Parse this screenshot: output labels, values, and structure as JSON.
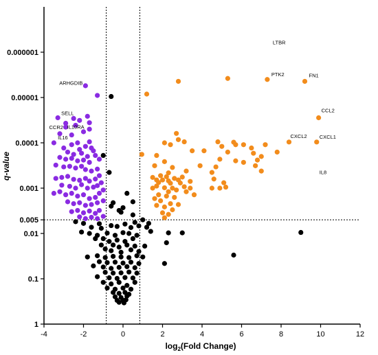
{
  "chart_data": {
    "type": "scatter",
    "title": "",
    "xlabel": "log",
    "xlabel_sub": "2",
    "xlabel_rest": "(Fold Change)",
    "ylabel": "q-value",
    "xlim": [
      -4,
      12
    ],
    "ylim_log": [
      1e-07,
      1
    ],
    "y_axis_scale": "log, reversed (smallest q-value at top)",
    "x_ticks": [
      "-4",
      "-2",
      "0",
      "2",
      "4",
      "6",
      "8",
      "10",
      "12"
    ],
    "x_tick_values": [
      -4,
      -2,
      0,
      2,
      4,
      6,
      8,
      10,
      12
    ],
    "y_ticks": [
      "0.000001",
      "0.00001",
      "0.0001",
      "0.001",
      "0.005",
      "0.01",
      "0.1",
      "1"
    ],
    "y_tick_values": [
      1e-06,
      1e-05,
      0.0001,
      0.001,
      0.005,
      0.01,
      0.1,
      1
    ],
    "threshold_lines": {
      "x": [
        -0.85,
        0.85
      ],
      "y": 0.005
    },
    "colors": {
      "down": "#8a2be2",
      "up": "#f28c1c",
      "ns": "#000000"
    },
    "labels": [
      {
        "name": "LTBR",
        "x": 7.3,
        "y": 7.2e-07
      },
      {
        "name": "PTK2",
        "x": 7.3,
        "y": 4.2e-06
      },
      {
        "name": "FN1",
        "x": 9.2,
        "y": 4.4e-06
      },
      {
        "name": "ARHGDIB",
        "x": -1.9,
        "y": 5.6e-06
      },
      {
        "name": "CCL2",
        "x": 9.9,
        "y": 2.7e-05
      },
      {
        "name": "SELL",
        "x": -3.3,
        "y": 2.7e-05
      },
      {
        "name": "CCR2",
        "x": -3.6,
        "y": 4.8e-05
      },
      {
        "name": "IL10RA",
        "x": -2.9,
        "y": 5.8e-05
      },
      {
        "name": "IL16",
        "x": -3.3,
        "y": 0.0001
      },
      {
        "name": "CXCL2",
        "x": 8.4,
        "y": 9.6e-05
      },
      {
        "name": "CXCL1",
        "x": 9.8,
        "y": 0.0001
      },
      {
        "name": "IL8",
        "x": 9.8,
        "y": 0.00065
      }
    ],
    "series": [
      {
        "name": "",
        "color": "#8a2be2",
        "points": [
          [
            -1.9,
            5.5e-06
          ],
          [
            -1.3,
            9e-06
          ],
          [
            -3.3,
            2.8e-05
          ],
          [
            -2.9,
            3.7e-05
          ],
          [
            -2.9,
            4.5e-05
          ],
          [
            -2.5,
            2.9e-05
          ],
          [
            -2.4,
            4.1e-05
          ],
          [
            -2.2,
            3.2e-05
          ],
          [
            -1.8,
            2.6e-05
          ],
          [
            -1.7,
            3.6e-05
          ],
          [
            -1.7,
            5e-05
          ],
          [
            -2.0,
            5.7e-05
          ],
          [
            -3.2,
            6.3e-05
          ],
          [
            -2.6,
            6.7e-05
          ],
          [
            -3.5,
            0.0001
          ],
          [
            -3.0,
            0.00013
          ],
          [
            -2.6,
            0.00011
          ],
          [
            -2.3,
            0.0001
          ],
          [
            -2.2,
            0.00014
          ],
          [
            -1.9,
            0.00012
          ],
          [
            -1.7,
            9.5e-05
          ],
          [
            -1.6,
            0.00013
          ],
          [
            -1.5,
            0.00015
          ],
          [
            -2.8,
            0.00016
          ],
          [
            -2.5,
            0.00018
          ],
          [
            -2.1,
            0.00017
          ],
          [
            -1.8,
            0.0002
          ],
          [
            -1.4,
            0.00019
          ],
          [
            -3.2,
            0.00021
          ],
          [
            -2.9,
            0.00023
          ],
          [
            -2.6,
            0.00022
          ],
          [
            -2.3,
            0.00025
          ],
          [
            -2.0,
            0.00024
          ],
          [
            -1.7,
            0.00027
          ],
          [
            -1.2,
            0.00023
          ],
          [
            -3.4,
            0.00031
          ],
          [
            -3.0,
            0.00034
          ],
          [
            -2.7,
            0.00033
          ],
          [
            -2.4,
            0.00036
          ],
          [
            -2.1,
            0.00033
          ],
          [
            -1.9,
            0.00039
          ],
          [
            -1.6,
            0.00042
          ],
          [
            -1.3,
            0.00038
          ],
          [
            -3.4,
            0.00061
          ],
          [
            -3.1,
            0.00058
          ],
          [
            -2.8,
            0.00055
          ],
          [
            -2.5,
            0.00064
          ],
          [
            -2.2,
            0.00067
          ],
          [
            -1.9,
            0.00061
          ],
          [
            -1.7,
            0.0007
          ],
          [
            -1.4,
            0.00063
          ],
          [
            -1.2,
            0.00053
          ],
          [
            -3.1,
            0.00086
          ],
          [
            -2.7,
            0.00091
          ],
          [
            -2.4,
            0.001
          ],
          [
            -2.1,
            0.00084
          ],
          [
            -1.8,
            0.001
          ],
          [
            -1.5,
            0.00095
          ],
          [
            -1.3,
            0.00088
          ],
          [
            -1.1,
            0.00076
          ],
          [
            -3.5,
            0.0013
          ],
          [
            -3.2,
            0.0012
          ],
          [
            -2.9,
            0.0014
          ],
          [
            -2.6,
            0.0013
          ],
          [
            -2.3,
            0.0015
          ],
          [
            -2.0,
            0.0014
          ],
          [
            -1.7,
            0.0017
          ],
          [
            -1.4,
            0.0016
          ],
          [
            -1.2,
            0.0013
          ],
          [
            -1.0,
            0.0011
          ],
          [
            -2.8,
            0.002
          ],
          [
            -2.5,
            0.0022
          ],
          [
            -2.2,
            0.0021
          ],
          [
            -1.9,
            0.0024
          ],
          [
            -1.6,
            0.0023
          ],
          [
            -1.3,
            0.0021
          ],
          [
            -1.0,
            0.0019
          ],
          [
            -2.6,
            0.0033
          ],
          [
            -2.3,
            0.0031
          ],
          [
            -2.0,
            0.0035
          ],
          [
            -1.7,
            0.0032
          ],
          [
            -1.4,
            0.0036
          ],
          [
            -1.2,
            0.0031
          ],
          [
            -2.2,
            0.0043
          ],
          [
            -1.9,
            0.0047
          ],
          [
            -1.6,
            0.0044
          ],
          [
            -1.3,
            0.0047
          ],
          [
            -1.0,
            0.0042
          ]
        ]
      },
      {
        "name": "",
        "color": "#f28c1c",
        "points": [
          [
            7.3,
            4e-06
          ],
          [
            5.3,
            3.8e-06
          ],
          [
            2.8,
            4.4e-06
          ],
          [
            9.2,
            4.4e-06
          ],
          [
            1.2,
            8.4e-06
          ],
          [
            9.9,
            2.8e-05
          ],
          [
            8.4,
            9.6e-05
          ],
          [
            9.8,
            9.6e-05
          ],
          [
            7.8,
            0.00016
          ],
          [
            7.2,
            0.00011
          ],
          [
            2.7,
            6.2e-05
          ],
          [
            2.8,
            8.5e-05
          ],
          [
            3.1,
            9.5e-05
          ],
          [
            2.4,
            0.00011
          ],
          [
            2.1,
            0.0001
          ],
          [
            3.5,
            0.00015
          ],
          [
            4.1,
            0.00015
          ],
          [
            4.8,
            9.5e-05
          ],
          [
            5.0,
            0.00012
          ],
          [
            5.6,
            9.7e-05
          ],
          [
            5.7,
            0.00011
          ],
          [
            6.1,
            0.00011
          ],
          [
            6.6,
            0.00017
          ],
          [
            6.5,
            0.00013
          ],
          [
            7.0,
            0.0002
          ],
          [
            6.8,
            0.00024
          ],
          [
            6.1,
            0.00027
          ],
          [
            5.3,
            0.00016
          ],
          [
            4.9,
            0.00023
          ],
          [
            0.95,
            0.00018
          ],
          [
            1.7,
            0.00019
          ],
          [
            2.1,
            0.00026
          ],
          [
            1.6,
            0.00032
          ],
          [
            2.5,
            0.00035
          ],
          [
            3.9,
            0.00032
          ],
          [
            4.7,
            0.00034
          ],
          [
            6.7,
            0.00032
          ],
          [
            5.7,
            0.00025
          ],
          [
            7.0,
            0.00042
          ],
          [
            4.5,
            0.00045
          ],
          [
            3.2,
            0.00042
          ],
          [
            2.3,
            0.00046
          ],
          [
            1.5,
            0.00058
          ],
          [
            1.9,
            0.00053
          ],
          [
            2.2,
            0.00056
          ],
          [
            2.6,
            0.00061
          ],
          [
            3.0,
            0.00057
          ],
          [
            1.7,
            0.00066
          ],
          [
            2.0,
            0.00066
          ],
          [
            2.3,
            0.00069
          ],
          [
            2.8,
            0.00066
          ],
          [
            3.4,
            0.00071
          ],
          [
            4.6,
            0.00063
          ],
          [
            5.1,
            0.00076
          ],
          [
            1.8,
            0.00075
          ],
          [
            2.4,
            0.00078
          ],
          [
            2.9,
            0.00077
          ],
          [
            1.7,
            0.0009
          ],
          [
            2.1,
            0.00098
          ],
          [
            2.5,
            0.001
          ],
          [
            3.1,
            0.00093
          ],
          [
            3.4,
            0.001
          ],
          [
            4.5,
            0.001
          ],
          [
            4.9,
            0.001
          ],
          [
            5.2,
            0.00095
          ],
          [
            1.5,
            0.001
          ],
          [
            2.3,
            0.0012
          ],
          [
            2.7,
            0.0011
          ],
          [
            3.2,
            0.0012
          ],
          [
            1.8,
            0.0014
          ],
          [
            2.2,
            0.0015
          ],
          [
            2.6,
            0.0016
          ],
          [
            3.6,
            0.0014
          ],
          [
            1.6,
            0.0017
          ],
          [
            1.9,
            0.0019
          ],
          [
            2.4,
            0.0022
          ],
          [
            2.8,
            0.0023
          ],
          [
            1.7,
            0.0024
          ],
          [
            2.1,
            0.0026
          ],
          [
            2.5,
            0.003
          ],
          [
            2.0,
            0.0035
          ],
          [
            2.3,
            0.0038
          ],
          [
            2.1,
            0.0045
          ]
        ]
      },
      {
        "name": "",
        "color": "#000000",
        "points": [
          [
            -0.6,
            9.5e-06
          ],
          [
            -1.0,
            0.00019
          ],
          [
            -0.7,
            0.00045
          ],
          [
            -0.6,
            0.0025
          ],
          [
            -0.5,
            0.0021
          ],
          [
            0.5,
            0.002
          ],
          [
            0.2,
            0.0013
          ],
          [
            0.0,
            0.0027
          ],
          [
            -0.2,
            0.0031
          ],
          [
            -0.1,
            0.0034
          ],
          [
            0.5,
            0.0039
          ],
          [
            1.0,
            0.005
          ],
          [
            1.3,
            0.006
          ],
          [
            0.6,
            0.0057
          ],
          [
            -2.4,
            0.0055
          ],
          [
            -2.0,
            0.006
          ],
          [
            -1.2,
            0.0061
          ],
          [
            -1.6,
            0.0073
          ],
          [
            -1.1,
            0.0077
          ],
          [
            -0.6,
            0.0067
          ],
          [
            -0.3,
            0.007
          ],
          [
            0.1,
            0.0062
          ],
          [
            0.4,
            0.0074
          ],
          [
            0.8,
            0.0068
          ],
          [
            1.2,
            0.0073
          ],
          [
            1.4,
            0.009
          ],
          [
            2.3,
            0.0097
          ],
          [
            3.0,
            0.0097
          ],
          [
            -2.1,
            0.0093
          ],
          [
            -1.7,
            0.01
          ],
          [
            -1.3,
            0.011
          ],
          [
            -0.8,
            0.0098
          ],
          [
            -0.4,
            0.011
          ],
          [
            0.0,
            0.0096
          ],
          [
            0.3,
            0.01
          ],
          [
            0.7,
            0.011
          ],
          [
            9.0,
            0.0095
          ],
          [
            -1.4,
            0.013
          ],
          [
            -1.0,
            0.013
          ],
          [
            -0.7,
            0.015
          ],
          [
            -0.3,
            0.014
          ],
          [
            0.1,
            0.015
          ],
          [
            0.5,
            0.013
          ],
          [
            -1.1,
            0.018
          ],
          [
            -0.5,
            0.018
          ],
          [
            -0.2,
            0.02
          ],
          [
            0.2,
            0.018
          ],
          [
            0.6,
            0.019
          ],
          [
            2.2,
            0.016
          ],
          [
            1.1,
            0.019
          ],
          [
            -0.9,
            0.022
          ],
          [
            -0.6,
            0.024
          ],
          [
            -0.1,
            0.026
          ],
          [
            0.4,
            0.023
          ],
          [
            0.8,
            0.025
          ],
          [
            -1.8,
            0.033
          ],
          [
            -1.3,
            0.031
          ],
          [
            -0.9,
            0.034
          ],
          [
            -0.5,
            0.032
          ],
          [
            -0.1,
            0.033
          ],
          [
            0.3,
            0.034
          ],
          [
            0.7,
            0.031
          ],
          [
            1.0,
            0.033
          ],
          [
            5.6,
            0.03
          ],
          [
            -1.2,
            0.042
          ],
          [
            -0.8,
            0.044
          ],
          [
            -0.4,
            0.043
          ],
          [
            0.0,
            0.045
          ],
          [
            0.4,
            0.043
          ],
          [
            0.8,
            0.046
          ],
          [
            2.1,
            0.046
          ],
          [
            -1.5,
            0.052
          ],
          [
            -1.0,
            0.055
          ],
          [
            -0.6,
            0.059
          ],
          [
            -0.2,
            0.056
          ],
          [
            0.2,
            0.054
          ],
          [
            0.6,
            0.057
          ],
          [
            -0.9,
            0.072
          ],
          [
            -0.5,
            0.075
          ],
          [
            -0.1,
            0.074
          ],
          [
            0.3,
            0.071
          ],
          [
            0.7,
            0.075
          ],
          [
            -1.3,
            0.09
          ],
          [
            -0.7,
            0.095
          ],
          [
            -0.3,
            0.098
          ],
          [
            0.1,
            0.094
          ],
          [
            0.5,
            0.096
          ],
          [
            -1.0,
            0.12
          ],
          [
            -0.6,
            0.13
          ],
          [
            -0.2,
            0.12
          ],
          [
            0.2,
            0.14
          ],
          [
            0.6,
            0.12
          ],
          [
            -0.8,
            0.16
          ],
          [
            -0.4,
            0.17
          ],
          [
            0.0,
            0.16
          ],
          [
            0.4,
            0.17
          ],
          [
            -0.5,
            0.2
          ],
          [
            -0.2,
            0.21
          ],
          [
            0.1,
            0.2
          ],
          [
            0.3,
            0.22
          ],
          [
            -0.4,
            0.25
          ],
          [
            -0.1,
            0.26
          ],
          [
            0.2,
            0.24
          ],
          [
            -0.3,
            0.3
          ],
          [
            0.0,
            0.3
          ],
          [
            0.15,
            0.29
          ],
          [
            -0.2,
            0.33
          ],
          [
            0.05,
            0.34
          ]
        ]
      }
    ]
  }
}
